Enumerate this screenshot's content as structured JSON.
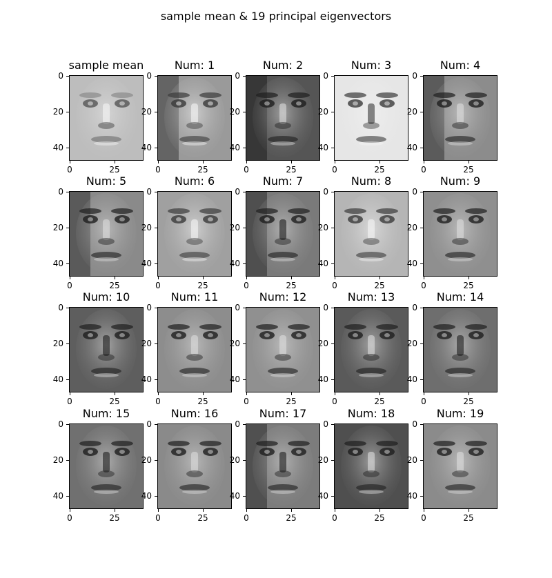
{
  "figure": {
    "suptitle": "sample mean & 19 principal eigenvectors"
  },
  "chart_data": {
    "type": "image-grid",
    "title": "sample mean & 19 principal eigenvectors",
    "image_shape": [
      48,
      42
    ],
    "colormap": "gray",
    "xticks": [
      "0",
      "25"
    ],
    "yticks": [
      "0",
      "20",
      "40"
    ],
    "panels": [
      {
        "title": "sample mean",
        "kind": "mean"
      },
      {
        "title": "Num: 1",
        "kind": "eig",
        "bg": "#9a9a9a"
      },
      {
        "title": "Num: 2",
        "kind": "eig",
        "bg": "#555555"
      },
      {
        "title": "Num: 3",
        "kind": "eig",
        "bg": "#e6e6e6"
      },
      {
        "title": "Num: 4",
        "kind": "eig",
        "bg": "#8c8c8c"
      },
      {
        "title": "Num: 5",
        "kind": "eig",
        "bg": "#8a8a8a"
      },
      {
        "title": "Num: 6",
        "kind": "eig",
        "bg": "#a0a0a0"
      },
      {
        "title": "Num: 7",
        "kind": "eig",
        "bg": "#7a7a7a"
      },
      {
        "title": "Num: 8",
        "kind": "eig",
        "bg": "#b5b5b5"
      },
      {
        "title": "Num: 9",
        "kind": "eig",
        "bg": "#8f8f8f"
      },
      {
        "title": "Num: 10",
        "kind": "eig",
        "bg": "#5e5e5e"
      },
      {
        "title": "Num: 11",
        "kind": "eig",
        "bg": "#8d8d8d"
      },
      {
        "title": "Num: 12",
        "kind": "eig",
        "bg": "#909090"
      },
      {
        "title": "Num: 13",
        "kind": "eig",
        "bg": "#5a5a5a"
      },
      {
        "title": "Num: 14",
        "kind": "eig",
        "bg": "#6e6e6e"
      },
      {
        "title": "Num: 15",
        "kind": "eig",
        "bg": "#707070"
      },
      {
        "title": "Num: 16",
        "kind": "eig",
        "bg": "#8a8a8a"
      },
      {
        "title": "Num: 17",
        "kind": "eig",
        "bg": "#7c7c7c"
      },
      {
        "title": "Num: 18",
        "kind": "eig",
        "bg": "#4f4f4f"
      },
      {
        "title": "Num: 19",
        "kind": "eig",
        "bg": "#8b8b8b"
      }
    ]
  }
}
